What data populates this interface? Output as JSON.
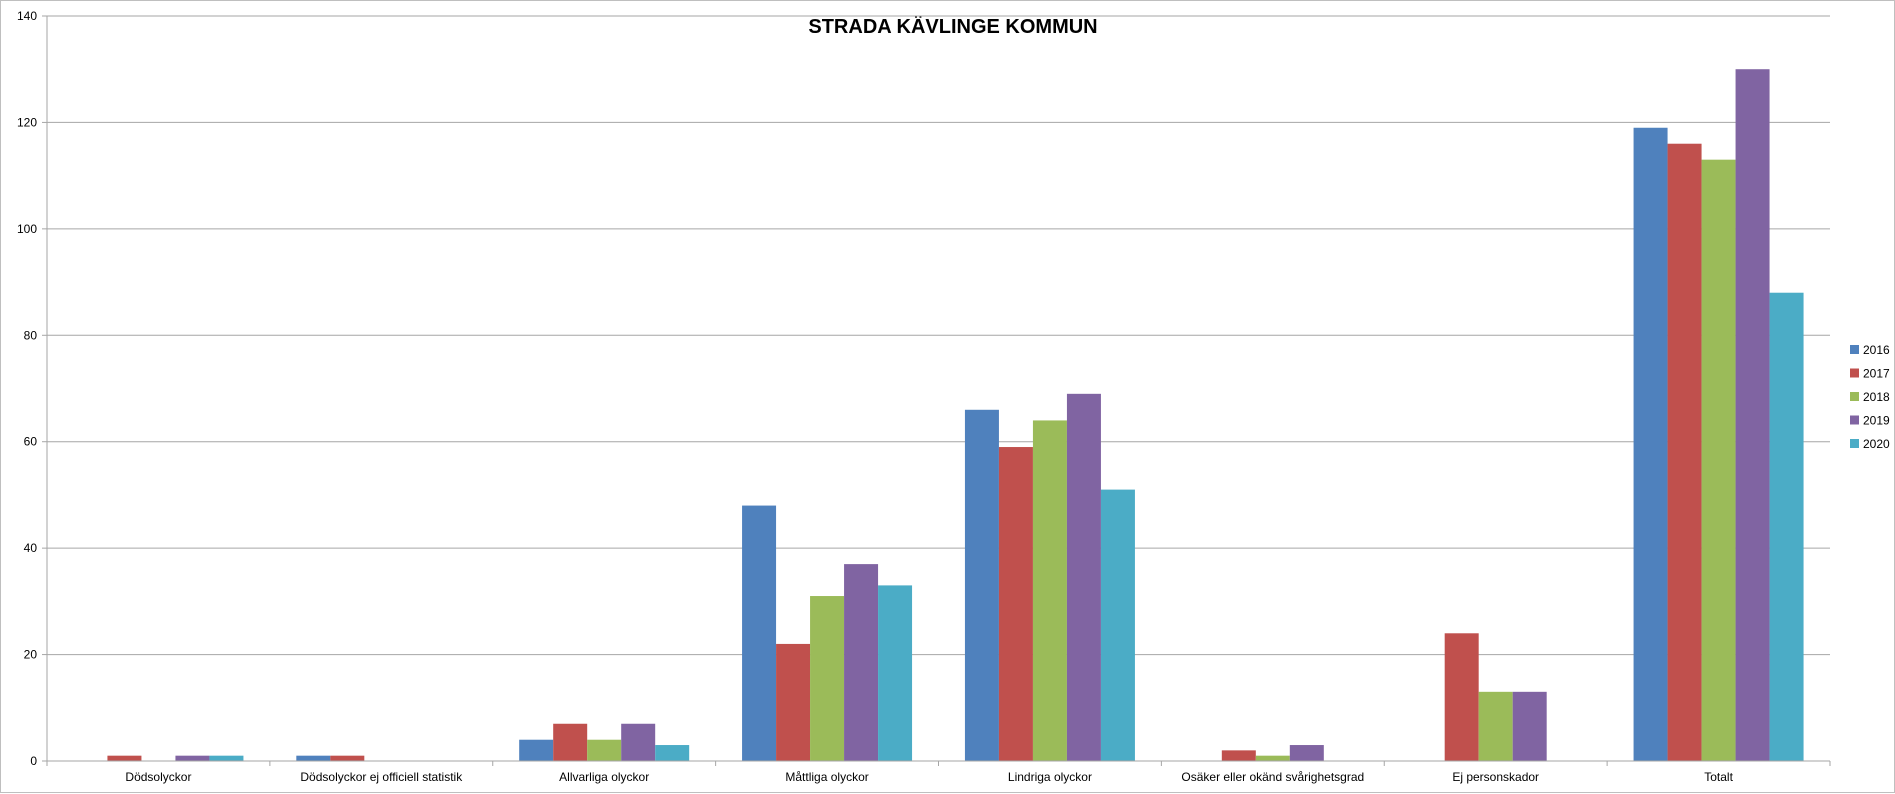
{
  "chart_data": {
    "type": "bar",
    "title": "STRADA KÄVLINGE KOMMUN",
    "xlabel": "",
    "ylabel": "",
    "ylim": [
      0,
      140
    ],
    "yticks": [
      0,
      20,
      40,
      60,
      80,
      100,
      120,
      140
    ],
    "grid": true,
    "legend_position": "right",
    "categories": [
      "Dödsolyckor",
      "Dödsolyckor ej officiell statistik",
      "Allvarliga olyckor",
      "Måttliga olyckor",
      "Lindriga olyckor",
      "Osäker eller okänd svårighetsgrad",
      "Ej personskador",
      "Totalt"
    ],
    "series": [
      {
        "name": "2016",
        "color": "#4F81BD",
        "values": [
          0,
          1,
          4,
          48,
          66,
          0,
          0,
          119
        ]
      },
      {
        "name": "2017",
        "color": "#C0504D",
        "values": [
          1,
          1,
          7,
          22,
          59,
          2,
          24,
          116
        ]
      },
      {
        "name": "2018",
        "color": "#9BBB59",
        "values": [
          0,
          0,
          4,
          31,
          64,
          1,
          13,
          113
        ]
      },
      {
        "name": "2019",
        "color": "#8064A2",
        "values": [
          1,
          0,
          7,
          37,
          69,
          3,
          13,
          130
        ]
      },
      {
        "name": "2020",
        "color": "#4BACC6",
        "values": [
          1,
          0,
          3,
          33,
          51,
          0,
          0,
          88
        ]
      }
    ]
  }
}
